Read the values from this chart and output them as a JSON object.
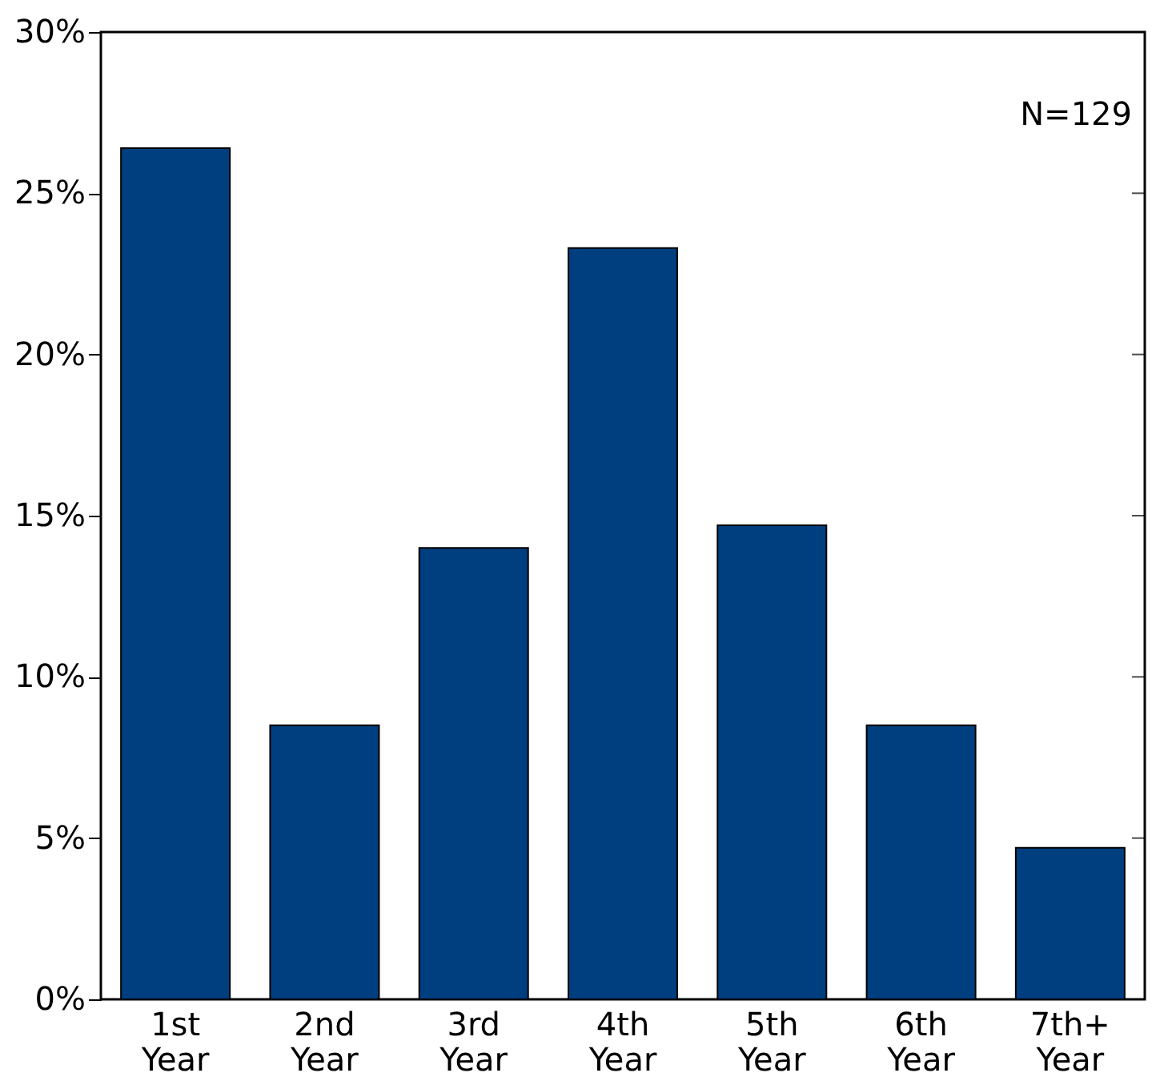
{
  "chart_data": {
    "type": "bar",
    "categories": [
      "1st Year",
      "2nd Year",
      "3rd Year",
      "4th Year",
      "5th Year",
      "6th Year",
      "7th+ Year"
    ],
    "values": [
      26.4,
      8.5,
      14.0,
      23.3,
      14.7,
      8.5,
      4.7
    ],
    "color": "#003f7f",
    "ylim": [
      0,
      30
    ],
    "yticks": [
      {
        "value": 0,
        "label": "0%"
      },
      {
        "value": 5,
        "label": "5%"
      },
      {
        "value": 10,
        "label": "10%"
      },
      {
        "value": 15,
        "label": "15%"
      },
      {
        "value": 20,
        "label": "20%"
      },
      {
        "value": 25,
        "label": "25%"
      },
      {
        "value": 30,
        "label": "30%"
      }
    ],
    "annotations": [
      "N=129"
    ],
    "grid": false
  }
}
